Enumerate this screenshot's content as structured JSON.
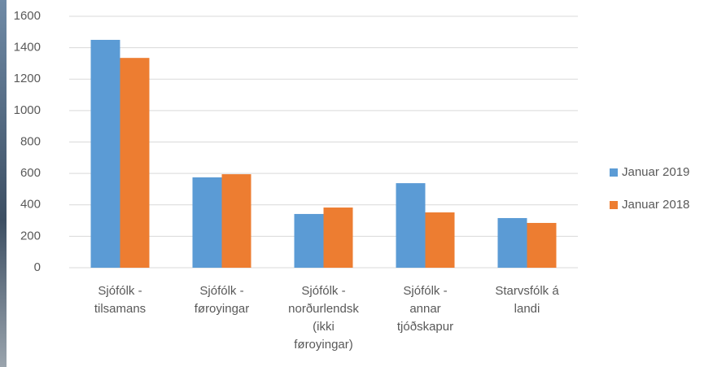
{
  "chart_data": {
    "type": "bar",
    "categories": [
      "Sjófólk -\ntilsamans",
      "Sjófólk -\nføroyingar",
      "Sjófólk -\nnorðurlendsk\n(ikki\nføroyingar)",
      "Sjófólk -\nannar\ntjóðskapur",
      "Starvsfólk á\nlandi"
    ],
    "series": [
      {
        "name": "Januar 2019",
        "color": "#5b9bd5",
        "values": [
          1450,
          575,
          342,
          538,
          316
        ]
      },
      {
        "name": "Januar 2018",
        "color": "#ed7d31",
        "values": [
          1335,
          595,
          383,
          352,
          285
        ]
      }
    ],
    "ylim": [
      0,
      1600
    ],
    "yticks": [
      0,
      200,
      400,
      600,
      800,
      1000,
      1200,
      1400,
      1600
    ],
    "grid": true,
    "legend": "right"
  }
}
